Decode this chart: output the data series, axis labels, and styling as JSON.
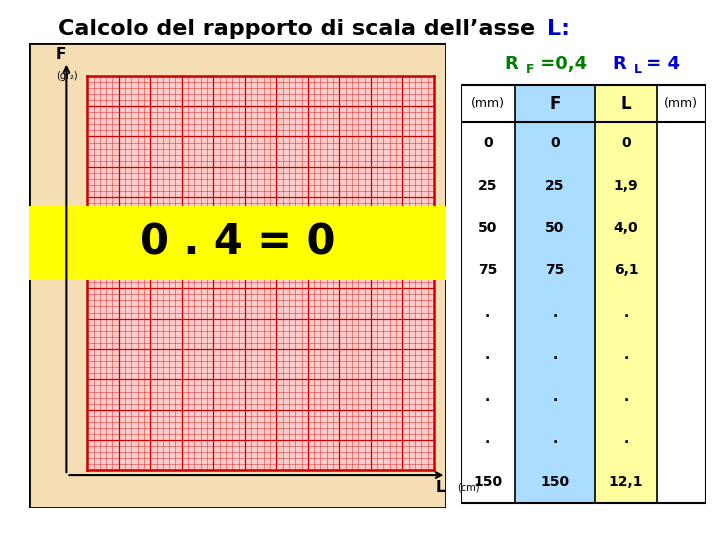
{
  "title_part1": "Calcolo del rapporto di scala dell’asse ",
  "title_L": "L:",
  "title_color": "#000000",
  "title_L_color": "#0000cc",
  "title_fontsize": 16,
  "bg_color": "#f5deb3",
  "graph_border_color": "#000000",
  "grid_bg": "#ffcccc",
  "grid_color": "#cc0000",
  "grid_thick_color": "#cc0000",
  "n_major_cols": 11,
  "n_major_rows": 13,
  "n_minor_per_major": 1,
  "axis_F": "F",
  "axis_F_sub": "(gr₂)",
  "axis_L": "L",
  "axis_L_sub": "(cm)",
  "yellow_text": "0 . 4 = 0",
  "yellow_color": "#ffff00",
  "RF_text": "R",
  "RF_sub": "F",
  "RF_val": " =0,4",
  "RL_text": "R",
  "RL_sub": "L",
  "RL_val": " = 4",
  "RF_color": "#008000",
  "RL_color": "#0000cc",
  "col_F_color": "#aaddff",
  "col_L_color": "#ffffa0",
  "header_mm": "(mm)",
  "header_F": "F",
  "header_L": "L",
  "rows_mm": [
    "0",
    "25",
    "50",
    "75",
    ".",
    ".",
    ".",
    ".",
    "150"
  ],
  "rows_F": [
    "0",
    "25",
    "50",
    "75",
    ".",
    ".",
    ".",
    ".",
    "150"
  ],
  "rows_L": [
    "0",
    "1,9",
    "4,0",
    "6,1",
    ".",
    ".",
    ".",
    ".",
    "12,1"
  ]
}
